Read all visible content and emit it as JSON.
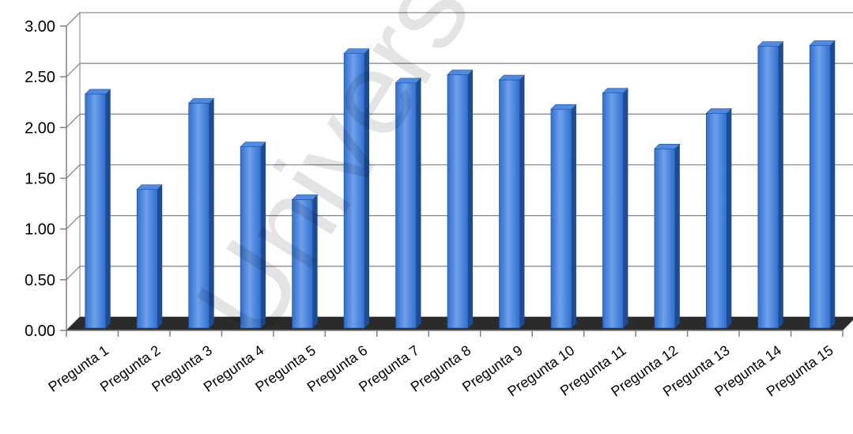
{
  "chart_data": {
    "type": "bar",
    "categories": [
      "Pregunta 1",
      "Pregunta 2",
      "Pregunta 3",
      "Pregunta 4",
      "Pregunta 5",
      "Pregunta 6",
      "Pregunta 7",
      "Pregunta 8",
      "Pregunta 9",
      "Pregunta 10",
      "Pregunta 11",
      "Pregunta 12",
      "Pregunta 13",
      "Pregunta 14",
      "Pregunta 15"
    ],
    "values": [
      2.33,
      1.39,
      2.24,
      1.81,
      1.29,
      2.73,
      2.44,
      2.52,
      2.47,
      2.18,
      2.34,
      1.79,
      2.14,
      2.8,
      2.81
    ],
    "yticks": [
      "0.00",
      "0.50",
      "1.00",
      "1.50",
      "2.00",
      "2.50",
      "3.00"
    ],
    "ylim": [
      0,
      3
    ],
    "title": "",
    "xlabel": "",
    "ylabel": "",
    "grid": true,
    "legend": "none",
    "style": "3d-column",
    "colors": {
      "bar_front": "#2f6fd0",
      "bar_highlight": "#6fa0ea",
      "bar_side": "#1d4b94",
      "bar_top": "#4f8ae0",
      "floor": "#2b2b2b",
      "grid": "#8c8c8c",
      "axis": "#808080"
    }
  },
  "watermark": {
    "text": "Universidad Ga"
  }
}
